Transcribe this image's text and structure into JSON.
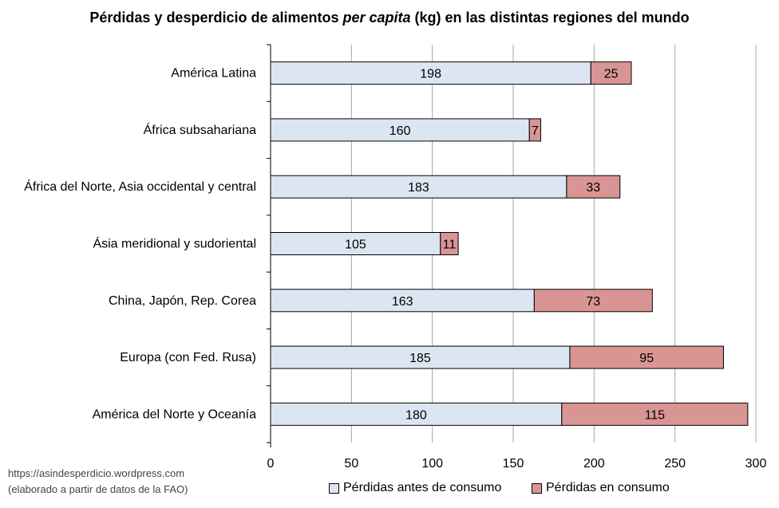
{
  "title": {
    "pre": "Pérdidas y desperdicio de alimentos ",
    "italic": "per capita",
    "post": " (kg) en las distintas regiones del mundo"
  },
  "source": {
    "line1": "https://asindesperdicio.wordpress.com",
    "line2": "(elaborado a partir de datos de la FAO)"
  },
  "colors": {
    "before": "#dce6f2",
    "consumption": "#d99594",
    "grid": "#a6a6a6",
    "stroke": "#000000"
  },
  "chart_data": {
    "type": "bar",
    "orientation": "horizontal",
    "stacked": true,
    "categories": [
      "América Latina",
      "África subsahariana",
      "África del Norte, Asia occidental y central",
      "Ásia meridional y sudoriental",
      "China, Japón, Rep. Corea",
      "Europa (con Fed. Rusa)",
      "América del Norte y Oceanía"
    ],
    "series": [
      {
        "name": "Pérdidas antes de consumo",
        "values": [
          198,
          160,
          183,
          105,
          163,
          185,
          180
        ]
      },
      {
        "name": "Pérdidas en consumo",
        "values": [
          25,
          7,
          33,
          11,
          73,
          95,
          115
        ]
      }
    ],
    "xlim": [
      0,
      300
    ],
    "xticks": [
      0,
      50,
      100,
      150,
      200,
      250,
      300
    ],
    "grid": "vertical",
    "legend": "bottom"
  }
}
